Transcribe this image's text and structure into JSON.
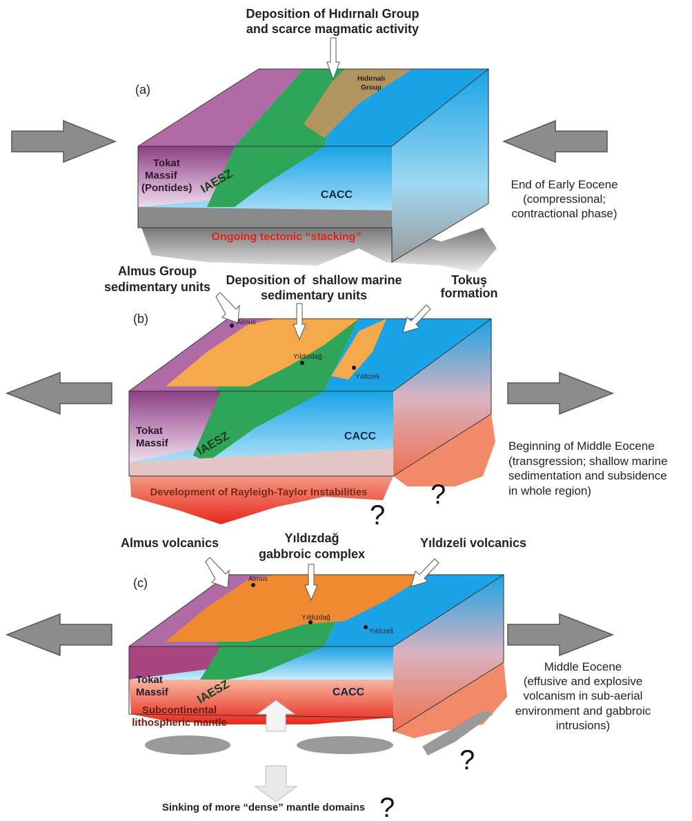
{
  "panels": [
    {
      "label": "(a)",
      "callouts": [
        [
          "Deposition of Hıdırnalı Group",
          "and scarce magmatic activity"
        ]
      ],
      "group": [
        "Hıdırnalı",
        "Group"
      ],
      "massif": [
        "Tokat",
        "Massif",
        "(Pontides)"
      ],
      "zone": "IAESZ",
      "complex": "CACC",
      "process": "Ongoing tectonic “stacking”",
      "caption": [
        "End of Early Eocene",
        "(compressional;",
        "contractional phase)"
      ]
    },
    {
      "label": "(b)",
      "callouts": [
        [
          "Almus Group",
          "sedimentary units"
        ],
        [
          "Deposition of  shallow marine",
          "sedimentary units"
        ],
        [
          "Tokuş",
          "formation"
        ]
      ],
      "places": [
        "Almus",
        "Yıldızdağ",
        "Yıldızeli"
      ],
      "massif": [
        "Tokat",
        "Massif"
      ],
      "zone": "IAESZ",
      "complex": "CACC",
      "process": "Development of Rayleigh-Taylor Instabilities",
      "unknowns": [
        "?",
        "?"
      ],
      "caption": [
        "Beginning of Middle Eocene",
        "(transgression; shallow marine",
        "sedimentation and subsidence",
        "in whole region)"
      ]
    },
    {
      "label": "(c)",
      "callouts": [
        [
          "Almus volcanics"
        ],
        [
          "Yıldızdağ",
          "gabbroic complex"
        ],
        [
          "Yıldızeli volcanics"
        ]
      ],
      "places": [
        "Almus",
        "Yıldızdağ",
        "Yıldızeli"
      ],
      "massif": [
        "Tokat",
        "Massif"
      ],
      "zone": "IAESZ",
      "complex": "CACC",
      "mantle": [
        "Subcontinental",
        "lithospheric mantle"
      ],
      "unknowns": [
        "?"
      ],
      "bottom": "Sinking of more “dense” mantle domains",
      "bottom_mark": "?",
      "caption": [
        "Middle Eocene",
        "(effusive and explosive",
        "volcanism in sub-aerial",
        "environment and gabbroic",
        "intrusions)"
      ]
    }
  ]
}
